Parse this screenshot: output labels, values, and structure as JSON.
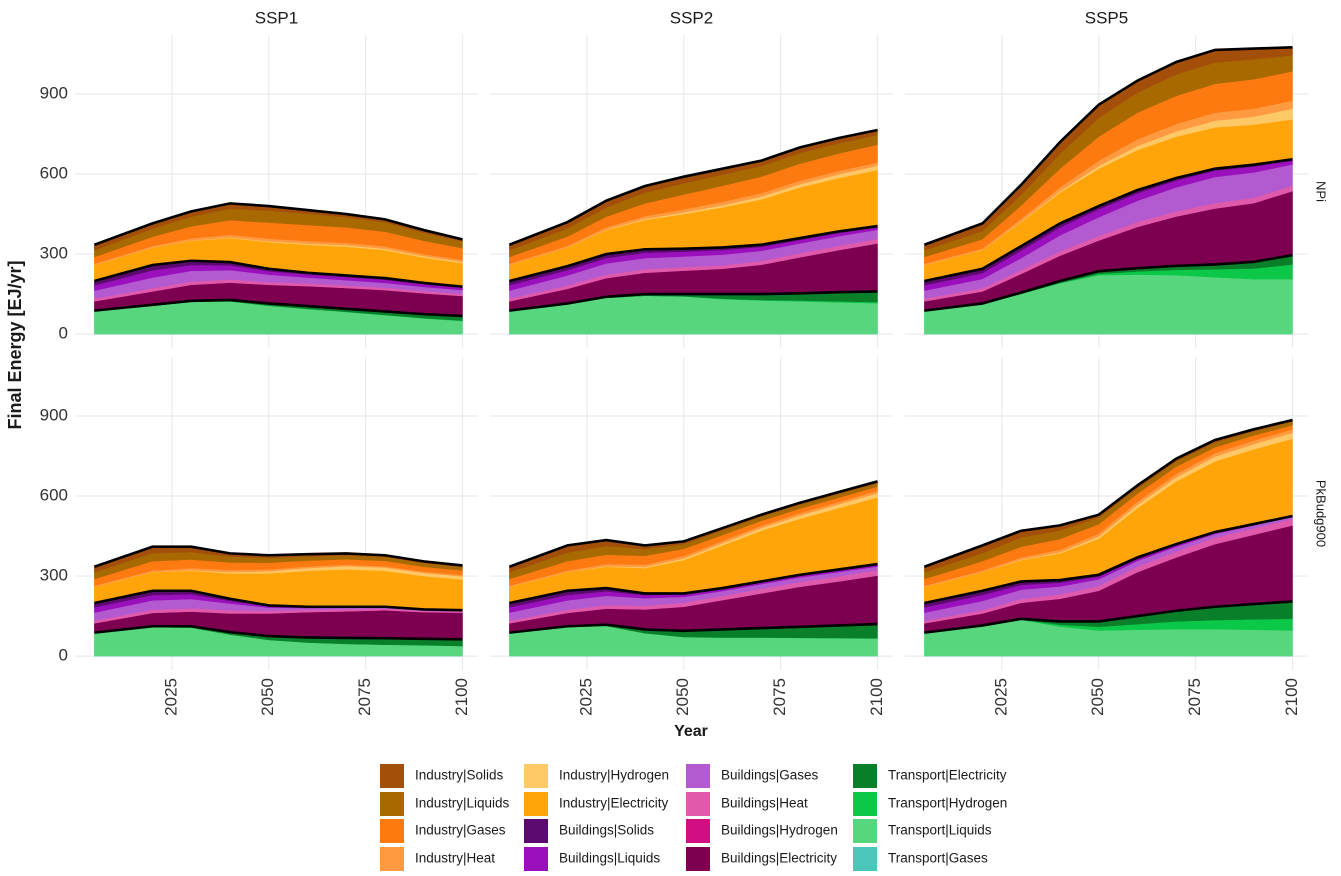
{
  "chart_data": {
    "type": "area",
    "ylabel": "Final Energy [EJ/yr]",
    "xlabel": "Year",
    "columns": [
      "SSP1",
      "SSP2",
      "SSP5"
    ],
    "rows": [
      "NPi",
      "PkBudg900"
    ],
    "x": [
      2005,
      2020,
      2030,
      2040,
      2050,
      2060,
      2070,
      2080,
      2090,
      2100
    ],
    "xlim": [
      2000,
      2104
    ],
    "xticks": [
      2025,
      2050,
      2075,
      2100
    ],
    "ylim": [
      -52,
      1121
    ],
    "yticks": [
      0,
      300,
      600,
      900
    ],
    "grid": true,
    "series": [
      {
        "name": "Industry|Solids",
        "color": "#a34f0a",
        "values": [
          [
            21,
            20,
            20,
            20,
            17,
            14,
            12,
            11,
            10,
            8
          ],
          [
            21,
            24,
            25,
            25,
            25,
            22,
            20,
            21,
            20,
            19
          ],
          [
            21,
            29,
            38,
            45,
            50,
            45,
            47,
            47,
            40,
            30
          ],
          [
            21,
            24,
            20,
            12,
            10,
            8,
            7,
            6,
            6,
            6
          ],
          [
            21,
            27,
            22,
            14,
            10,
            9,
            7,
            7,
            7,
            7
          ],
          [
            21,
            29,
            25,
            19,
            11,
            10,
            10,
            9,
            7,
            6
          ]
        ]
      },
      {
        "name": "Industry|Liquids",
        "color": "#a86a00",
        "values": [
          [
            25,
            30,
            36,
            43,
            45,
            42,
            38,
            35,
            30,
            25
          ],
          [
            25,
            30,
            35,
            40,
            42,
            42,
            40,
            40,
            38,
            36
          ],
          [
            25,
            30,
            40,
            55,
            70,
            75,
            80,
            80,
            75,
            60
          ],
          [
            25,
            30,
            28,
            22,
            18,
            16,
            15,
            15,
            14,
            13
          ],
          [
            25,
            32,
            33,
            25,
            18,
            17,
            16,
            15,
            14,
            13
          ],
          [
            25,
            30,
            35,
            32,
            25,
            21,
            20,
            18,
            16,
            14
          ]
        ]
      },
      {
        "name": "Industry|Gases",
        "color": "#fc7a10",
        "values": [
          [
            25,
            35,
            45,
            55,
            60,
            60,
            58,
            55,
            50,
            44
          ],
          [
            25,
            35,
            40,
            48,
            55,
            60,
            62,
            64,
            65,
            67
          ],
          [
            25,
            35,
            50,
            70,
            90,
            100,
            105,
            108,
            110,
            110
          ],
          [
            25,
            35,
            32,
            28,
            25,
            22,
            20,
            20,
            18,
            17
          ],
          [
            25,
            35,
            35,
            33,
            27,
            22,
            18,
            17,
            16,
            15
          ],
          [
            25,
            35,
            40,
            40,
            35,
            30,
            27,
            22,
            19,
            15
          ]
        ]
      },
      {
        "name": "Industry|Heat",
        "color": "#ff9a40",
        "values": [
          [
            5,
            6,
            8,
            10,
            10,
            10,
            9,
            9,
            8,
            7
          ],
          [
            5,
            6,
            8,
            10,
            12,
            13,
            13,
            13,
            13,
            12
          ],
          [
            5,
            6,
            10,
            15,
            20,
            25,
            28,
            30,
            30,
            30
          ],
          [
            5,
            6,
            8,
            8,
            7,
            6,
            6,
            5,
            5,
            5
          ],
          [
            5,
            6,
            8,
            9,
            9,
            9,
            9,
            9,
            9,
            9
          ],
          [
            5,
            6,
            8,
            10,
            11,
            12,
            13,
            13,
            13,
            13
          ]
        ]
      },
      {
        "name": "Industry|Hydrogen",
        "color": "#ffc866",
        "values": [
          [
            0,
            0,
            1,
            2,
            3,
            4,
            5,
            5,
            5,
            5
          ],
          [
            0,
            0,
            2,
            4,
            6,
            8,
            10,
            12,
            14,
            16
          ],
          [
            0,
            0,
            2,
            5,
            10,
            15,
            20,
            25,
            30,
            40
          ],
          [
            0,
            0,
            2,
            5,
            8,
            10,
            12,
            12,
            12,
            12
          ],
          [
            0,
            0,
            2,
            4,
            6,
            8,
            10,
            12,
            14,
            16
          ],
          [
            0,
            0,
            2,
            4,
            8,
            12,
            15,
            18,
            20,
            22
          ]
        ]
      },
      {
        "name": "Industry|Electricity",
        "color": "#ffa50a",
        "values": [
          [
            60,
            65,
            75,
            90,
            100,
            105,
            108,
            105,
            95,
            88
          ],
          [
            60,
            70,
            90,
            110,
            130,
            150,
            170,
            190,
            200,
            210
          ],
          [
            60,
            70,
            90,
            115,
            140,
            150,
            155,
            155,
            150,
            150
          ],
          [
            60,
            70,
            75,
            95,
            120,
            135,
            140,
            135,
            125,
            115
          ],
          [
            60,
            70,
            80,
            95,
            125,
            160,
            190,
            210,
            230,
            250
          ],
          [
            60,
            70,
            80,
            100,
            135,
            185,
            235,
            265,
            280,
            290
          ]
        ]
      },
      {
        "name": "Buildings|Solids",
        "color": "#5c0a70",
        "values": [
          [
            16,
            20,
            16,
            12,
            9,
            6,
            6,
            6,
            5,
            4
          ],
          [
            16,
            15,
            15,
            13,
            11,
            10,
            8,
            7,
            6,
            5
          ],
          [
            16,
            16,
            17,
            15,
            12,
            12,
            9,
            7,
            7,
            4
          ],
          [
            16,
            16,
            13,
            8,
            3,
            2,
            2,
            1,
            1,
            1
          ],
          [
            16,
            16,
            12,
            6,
            4,
            4,
            4,
            4,
            4,
            4
          ],
          [
            16,
            16,
            13,
            10,
            7,
            6,
            4,
            3,
            2,
            1
          ]
        ]
      },
      {
        "name": "Buildings|Liquids",
        "color": "#9a10bc",
        "values": [
          [
            20,
            27,
            22,
            18,
            13,
            12,
            12,
            12,
            10,
            9
          ],
          [
            20,
            20,
            20,
            20,
            18,
            17,
            15,
            13,
            12,
            9
          ],
          [
            20,
            22,
            28,
            30,
            30,
            28,
            26,
            24,
            22,
            15
          ],
          [
            20,
            20,
            18,
            10,
            5,
            3,
            2,
            2,
            1,
            1
          ],
          [
            20,
            20,
            17,
            12,
            9,
            7,
            6,
            6,
            6,
            5
          ],
          [
            20,
            22,
            18,
            14,
            10,
            7,
            6,
            4,
            3,
            2
          ]
        ]
      },
      {
        "name": "Buildings|Gases",
        "color": "#b45ad0",
        "values": [
          [
            30,
            40,
            40,
            35,
            28,
            22,
            20,
            18,
            16,
            14
          ],
          [
            30,
            38,
            42,
            42,
            40,
            40,
            38,
            37,
            36,
            34
          ],
          [
            30,
            35,
            45,
            60,
            70,
            80,
            90,
            98,
            95,
            80
          ],
          [
            30,
            35,
            35,
            25,
            12,
            7,
            6,
            4,
            3,
            2
          ],
          [
            30,
            35,
            35,
            28,
            22,
            18,
            18,
            17,
            16,
            14
          ],
          [
            30,
            35,
            35,
            30,
            25,
            22,
            18,
            14,
            11,
            8
          ]
        ]
      },
      {
        "name": "Buildings|Heat",
        "color": "#e05aac",
        "values": [
          [
            10,
            12,
            12,
            12,
            10,
            10,
            9,
            9,
            8,
            8
          ],
          [
            10,
            12,
            13,
            13,
            13,
            13,
            14,
            15,
            16,
            17
          ],
          [
            10,
            12,
            14,
            16,
            17,
            18,
            19,
            20,
            20,
            20
          ],
          [
            10,
            12,
            12,
            12,
            10,
            8,
            7,
            6,
            5,
            5
          ],
          [
            10,
            12,
            13,
            14,
            15,
            16,
            17,
            18,
            19,
            20
          ],
          [
            10,
            12,
            14,
            16,
            18,
            20,
            22,
            24,
            24,
            24
          ]
        ]
      },
      {
        "name": "Buildings|Hydrogen",
        "color": "#d10d82",
        "values": [
          [
            0,
            0,
            0,
            0,
            0,
            0,
            0,
            0,
            0,
            0
          ],
          [
            0,
            0,
            0,
            0,
            0,
            0,
            0,
            0,
            0,
            0
          ],
          [
            0,
            0,
            0,
            0,
            0,
            0,
            0,
            0,
            0,
            0
          ],
          [
            0,
            0,
            0,
            0,
            0,
            0,
            0,
            0,
            0,
            0
          ],
          [
            0,
            0,
            0,
            0,
            0,
            0,
            0,
            0,
            0,
            0
          ],
          [
            0,
            0,
            0,
            0,
            0,
            0,
            0,
            0,
            0,
            0
          ]
        ]
      },
      {
        "name": "Buildings|Electricity",
        "color": "#7d0050",
        "values": [
          [
            35,
            50,
            60,
            65,
            70,
            75,
            78,
            80,
            78,
            75
          ],
          [
            35,
            55,
            70,
            80,
            88,
            95,
            110,
            135,
            158,
            180
          ],
          [
            35,
            45,
            70,
            95,
            115,
            155,
            185,
            210,
            220,
            240
          ],
          [
            35,
            50,
            55,
            70,
            85,
            95,
            100,
            105,
            100,
            100
          ],
          [
            35,
            50,
            60,
            75,
            90,
            110,
            130,
            150,
            165,
            182
          ],
          [
            35,
            45,
            60,
            85,
            115,
            165,
            200,
            235,
            260,
            285
          ]
        ]
      },
      {
        "name": "Transport|Electricity",
        "color": "#0a7f2a",
        "values": [
          [
            2,
            3,
            4,
            5,
            8,
            10,
            11,
            13,
            15,
            17
          ],
          [
            2,
            3,
            4,
            6,
            8,
            17,
            22,
            27,
            34,
            40
          ],
          [
            2,
            3,
            5,
            7,
            10,
            12,
            15,
            18,
            25,
            35
          ],
          [
            2,
            3,
            5,
            9,
            14,
            19,
            22,
            24,
            24,
            25
          ],
          [
            2,
            3,
            5,
            14,
            23,
            30,
            35,
            41,
            47,
            53
          ],
          [
            2,
            3,
            4,
            12,
            20,
            30,
            40,
            50,
            57,
            65
          ]
        ]
      },
      {
        "name": "Transport|Hydrogen",
        "color": "#0cc848",
        "values": [
          [
            0,
            0,
            0,
            0,
            1,
            1,
            1,
            1,
            1,
            2
          ],
          [
            0,
            0,
            0,
            0,
            1,
            2,
            2,
            3,
            4,
            4
          ],
          [
            0,
            0,
            0,
            1,
            5,
            12,
            20,
            30,
            40,
            55
          ],
          [
            0,
            0,
            0,
            0,
            0,
            0,
            0,
            0,
            0,
            0
          ],
          [
            0,
            0,
            0,
            0,
            1,
            1,
            1,
            1,
            1,
            1
          ],
          [
            0,
            0,
            0,
            7,
            14,
            21,
            29,
            34,
            39,
            44
          ]
        ]
      },
      {
        "name": "Transport|Liquids",
        "color": "#58d67e",
        "values": [
          [
            85,
            106,
            120,
            122,
            105,
            93,
            82,
            70,
            58,
            48
          ],
          [
            85,
            111,
            135,
            143,
            140,
            130,
            125,
            122,
            118,
            115
          ],
          [
            85,
            111,
            150,
            190,
            220,
            222,
            220,
            212,
            205,
            205
          ],
          [
            85,
            108,
            106,
            80,
            60,
            50,
            45,
            42,
            40,
            37
          ],
          [
            85,
            108,
            112,
            85,
            70,
            68,
            68,
            67,
            66,
            65
          ],
          [
            85,
            111,
            135,
            110,
            95,
            98,
            100,
            100,
            98,
            95
          ]
        ]
      },
      {
        "name": "Transport|Gases",
        "color": "#4cc6b8",
        "values": [
          [
            1,
            1,
            1,
            1,
            1,
            1,
            1,
            1,
            1,
            1
          ],
          [
            1,
            1,
            1,
            1,
            1,
            1,
            1,
            1,
            1,
            1
          ],
          [
            1,
            1,
            1,
            1,
            1,
            1,
            1,
            1,
            1,
            1
          ],
          [
            1,
            1,
            1,
            1,
            1,
            1,
            1,
            1,
            1,
            1
          ],
          [
            1,
            1,
            1,
            1,
            1,
            1,
            1,
            1,
            1,
            1
          ],
          [
            1,
            1,
            1,
            1,
            1,
            1,
            1,
            1,
            1,
            1
          ]
        ]
      }
    ]
  }
}
